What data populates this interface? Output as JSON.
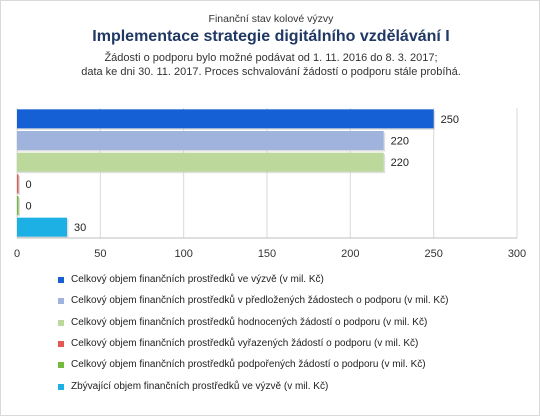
{
  "chart_data": {
    "type": "bar",
    "orientation": "horizontal",
    "supertitle": "Finanční stav kolové výzvy",
    "title": "Implementace strategie digitálního vzdělávání I",
    "subtitle_line1": "Žádosti o podporu bylo možné  podávat od 1. 11. 2016 do 8. 3. 2017;",
    "subtitle_line2": "data ke dni 30. 11. 2017. Proces schvalování žádostí o podporu stále probíhá.",
    "xlim": [
      0,
      300
    ],
    "xticks": [
      "0",
      "50",
      "100",
      "150",
      "200",
      "250",
      "300"
    ],
    "grid": true,
    "legend_position": "bottom",
    "series": [
      {
        "name": "Celkový objem finančních prostředků ve výzvě (v mil. Kč)",
        "value": 250,
        "label": "250",
        "color": "#1560d4"
      },
      {
        "name": "Celkový objem finančních prostředků v předložených žádostech o podporu (v mil. Kč)",
        "value": 220,
        "label": "220",
        "color": "#9fb3dc"
      },
      {
        "name": "Celkový objem finančních prostředků hodnocených žádostí o podporu (v mil. Kč)",
        "value": 220,
        "label": "220",
        "color": "#bcd89b"
      },
      {
        "name": "Celkový objem finančních prostředků vyřazených žádostí o podporu (v mil. Kč)",
        "value": 0,
        "label": "0",
        "color": "#e05a4f"
      },
      {
        "name": "Celkový objem finančních prostředků podpořených žádostí o podporu (v mil. Kč)",
        "value": 0,
        "label": "0",
        "color": "#74b83c"
      },
      {
        "name": "Zbývající objem finančních prostředků ve výzvě (v mil. Kč)",
        "value": 30,
        "label": "30",
        "color": "#1cb0e4"
      }
    ]
  }
}
